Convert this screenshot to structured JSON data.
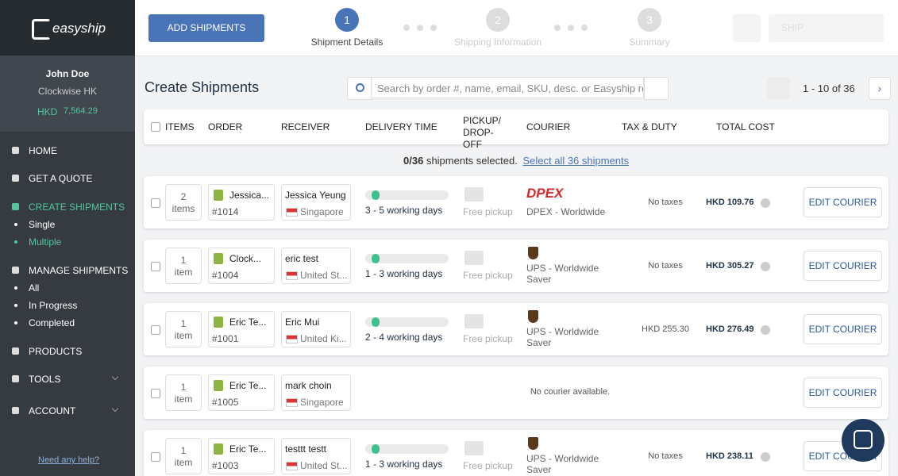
{
  "sidebar": {
    "logo": "easyship",
    "user": {
      "name": "John Doe",
      "company": "Clockwise HK",
      "currency": "HKD",
      "balance": "7,564.29"
    },
    "nav": [
      {
        "label": "HOME"
      },
      {
        "label": "GET A QUOTE"
      },
      {
        "label": "CREATE SHIPMENTS",
        "children": [
          "Single",
          "Multiple"
        ]
      },
      {
        "label": "MANAGE SHIPMENTS",
        "children": [
          "All",
          "In Progress",
          "Completed"
        ]
      },
      {
        "label": "PRODUCTS"
      },
      {
        "label": "TOOLS"
      },
      {
        "label": "ACCOUNT"
      }
    ],
    "help": "Need any help?"
  },
  "topbar": {
    "add_button": "ADD SHIPMENTS",
    "steps": [
      {
        "number": "1",
        "label": "Shipment Details"
      },
      {
        "number": "2",
        "label": "Shipping Information"
      },
      {
        "number": "3",
        "label": "Summary"
      }
    ],
    "ship_button": "SHIP"
  },
  "content": {
    "title": "Create Shipments",
    "search_placeholder": "Search by order #, name, email, SKU, desc. or Easyship ref.",
    "pagination": "1 - 10 of 36",
    "columns": [
      "ITEMS",
      "ORDER",
      "RECEIVER",
      "DELIVERY TIME",
      "PICKUP/ DROP-OFF",
      "COURIER",
      "TAX & DUTY",
      "TOTAL COST"
    ],
    "selection": {
      "count": "0/36",
      "text": "shipments selected.",
      "link": "Select all 36 shipments"
    },
    "rows": [
      {
        "items_count": "2",
        "items_unit": "items",
        "order_name": "Jessica...",
        "order_number": "#1014",
        "receiver_name": "Jessica Yeung",
        "receiver_country": "Singapore",
        "delivery": "3 - 5 working days",
        "pickup": "Free pickup",
        "courier_logo": "DPEX",
        "courier": "DPEX - Worldwide",
        "tax": "No taxes",
        "total": "HKD 109.76",
        "action": "EDIT COURIER"
      },
      {
        "items_count": "1",
        "items_unit": "item",
        "order_name": "Clock...",
        "order_number": "#1004",
        "receiver_name": "eric test",
        "receiver_country": "United St...",
        "delivery": "1 - 3 working days",
        "pickup": "Free pickup",
        "courier": "UPS - Worldwide Saver",
        "tax": "No taxes",
        "total": "HKD 305.27",
        "action": "EDIT COURIER"
      },
      {
        "items_count": "1",
        "items_unit": "item",
        "order_name": "Eric Te...",
        "order_number": "#1001",
        "receiver_name": "Eric Mui",
        "receiver_country": "United Ki...",
        "delivery": "2 - 4 working days",
        "pickup": "Free pickup",
        "courier": "UPS - Worldwide Saver",
        "tax": "HKD 255.30",
        "total": "HKD 276.49",
        "action": "EDIT COURIER"
      },
      {
        "items_count": "1",
        "items_unit": "item",
        "order_name": "Eric Te...",
        "order_number": "#1005",
        "receiver_name": "mark choin",
        "receiver_country": "Singapore",
        "no_courier": "No courier available.",
        "action": "EDIT COURIER"
      },
      {
        "items_count": "1",
        "items_unit": "item",
        "order_name": "Eric Te...",
        "order_number": "#1003",
        "receiver_name": "testtt testt",
        "receiver_country": "United St...",
        "delivery": "1 - 3 working days",
        "pickup": "Free pickup",
        "courier": "UPS - Worldwide Saver",
        "tax": "No taxes",
        "total": "HKD 238.11",
        "action": "EDIT COURIER"
      }
    ]
  }
}
